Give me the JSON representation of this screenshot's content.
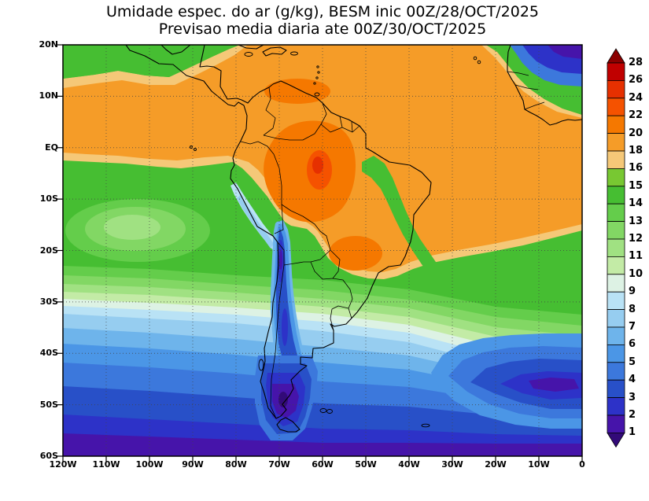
{
  "title": {
    "line1": "Umidade espec. do ar (g/kg), BESM inic 00Z/28/OCT/2025",
    "line2": "Previsao media diaria ate 00Z/30/OCT/2025"
  },
  "axes": {
    "lat_labels": [
      "20N",
      "10N",
      "EQ",
      "10S",
      "20S",
      "30S",
      "40S",
      "50S",
      "60S"
    ],
    "lon_labels": [
      "120W",
      "110W",
      "100W",
      "90W",
      "80W",
      "70W",
      "60W",
      "50W",
      "40W",
      "30W",
      "20W",
      "10W",
      "0"
    ]
  },
  "colorbar": {
    "tick_labels": [
      "28",
      "26",
      "24",
      "22",
      "20",
      "18",
      "16",
      "15",
      "14",
      "13",
      "12",
      "11",
      "10",
      "9",
      "8",
      "7",
      "6",
      "5",
      "4",
      "3",
      "2",
      "1"
    ],
    "colors_top_to_bottom": [
      "#8b0000",
      "#c00000",
      "#e63000",
      "#f55200",
      "#f57800",
      "#f59c28",
      "#f5c878",
      "#78c832",
      "#46be32",
      "#64cd4b",
      "#82d764",
      "#a0e182",
      "#c3eba6",
      "#ddf2e4",
      "#b9e2f5",
      "#96cdf0",
      "#6eb4eb",
      "#4b96e6",
      "#3c78dc",
      "#2850c8",
      "#2d32c8",
      "#4614aa",
      "#320a78"
    ]
  },
  "chart_data": {
    "type": "heatmap",
    "title": "Umidade espec. do ar (g/kg), BESM inic 00Z/28/OCT/2025",
    "subtitle": "Previsao media diaria ate 00Z/30/OCT/2025",
    "variable": "specific humidity of air",
    "units": "g/kg",
    "model": "BESM",
    "init_time": "00Z/28/OCT/2025",
    "valid_through": "00Z/30/OCT/2025",
    "lon_range": [
      "120W",
      "0"
    ],
    "lat_range": [
      "60S",
      "20N"
    ],
    "grid": "dotted 10-degree graticule",
    "legend_position": "right vertical colorbar with end triangles",
    "levels": [
      1,
      2,
      3,
      4,
      5,
      6,
      7,
      8,
      9,
      10,
      11,
      12,
      13,
      14,
      15,
      16,
      18,
      20,
      22,
      24,
      26,
      28
    ],
    "features": [
      {
        "region": "Tropical band 20N-5S (Caribbean, Amazon basin, tropical Atlantic)",
        "value_g_kg": "18-20"
      },
      {
        "region": "Western Amazon / Peru-Brazil border maximum",
        "value_g_kg": "20-24"
      },
      {
        "region": "Northeast Pacific corner 120-100W near 20N",
        "value_g_kg": "13-16"
      },
      {
        "region": "West African coast / Sahara edge (top-right corner)",
        "value_g_kg": "2-6"
      },
      {
        "region": "Green intrusion over eastern Brazil (~50-40W, 2S-20S)",
        "value_g_kg": "13-16"
      },
      {
        "region": "Orange tongue over Paraguay / southern Brazil (~25S)",
        "value_g_kg": "18-20"
      },
      {
        "region": "Subtropical South Pacific 10-30S",
        "value_g_kg": "10-15"
      },
      {
        "region": "Dry Andes / Chile tongue along 70W from 15S to Patagonia",
        "value_g_kg": "1-4"
      },
      {
        "region": "Mid-latitude oceans 30-40S",
        "value_g_kg": "6-9"
      },
      {
        "region": "Dark South Atlantic region 30W-0, 45-55S",
        "value_g_kg": "2-5"
      },
      {
        "region": "Patagonia 45-55S",
        "value_g_kg": "1-4"
      },
      {
        "region": "Southern Ocean near 60S",
        "value_g_kg": "1-3"
      }
    ]
  }
}
